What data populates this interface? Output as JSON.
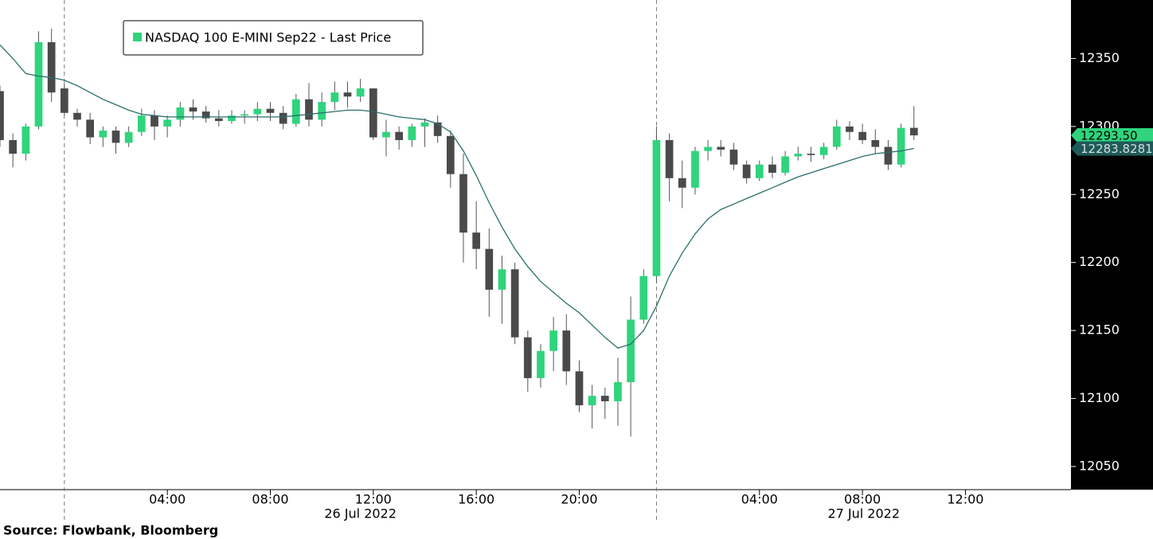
{
  "chart_data": {
    "type": "candlestick",
    "name": "NASDAQ 100 E-MINI Sep22 - Last Price",
    "up_color": "#2fd47c",
    "down_color": "#4a4a4a",
    "x": [
      -2.5,
      -2,
      -1.5,
      -1,
      -0.5,
      0,
      0.5,
      1,
      1.5,
      2,
      2.5,
      3,
      3.5,
      4,
      4.5,
      5,
      5.5,
      6,
      6.5,
      7,
      7.5,
      8,
      8.5,
      9,
      9.5,
      10,
      10.5,
      11,
      11.5,
      12,
      12.5,
      13,
      13.5,
      14,
      14.5,
      15,
      15.5,
      16,
      16.5,
      17,
      17.5,
      18,
      18.5,
      19,
      19.5,
      20,
      20.5,
      21,
      21.5,
      22,
      22.5,
      23,
      23.5,
      24,
      24.5,
      25,
      25.5,
      26,
      26.5,
      27,
      27.5,
      28,
      28.5,
      29,
      29.5,
      30,
      30.5,
      31,
      31.5,
      32,
      32.5,
      33
    ],
    "open": [
      12326,
      12290,
      12280,
      12300,
      12362,
      12328,
      12310,
      12305,
      12292,
      12297,
      12288,
      12296,
      12308,
      12300,
      12305,
      12314,
      12311,
      12306,
      12304,
      12308,
      12309,
      12313,
      12310,
      12302,
      12320,
      12305,
      12318,
      12325,
      12322,
      12328,
      12292,
      12296,
      12290,
      12300,
      12303,
      12293,
      12265,
      12222,
      12210,
      12180,
      12195,
      12145,
      12115,
      12135,
      12150,
      12120,
      12095,
      12102,
      12098,
      12112,
      12158,
      12190,
      12290,
      12262,
      12255,
      12282,
      12285,
      12283,
      12272,
      12262,
      12272,
      12266,
      12278,
      12280,
      12279,
      12285,
      12300,
      12296,
      12290,
      12285,
      12272,
      12299
    ],
    "high": [
      12330,
      12295,
      12302,
      12370,
      12372,
      12332,
      12313,
      12310,
      12300,
      12300,
      12300,
      12313,
      12312,
      12308,
      12318,
      12320,
      12315,
      12312,
      12312,
      12312,
      12318,
      12318,
      12315,
      12324,
      12332,
      12325,
      12333,
      12333,
      12335,
      12328,
      12305,
      12300,
      12302,
      12306,
      12308,
      12297,
      12280,
      12245,
      12225,
      12205,
      12200,
      12150,
      12140,
      12160,
      12162,
      12128,
      12110,
      12108,
      12130,
      12175,
      12195,
      12300,
      12295,
      12275,
      12285,
      12290,
      12290,
      12288,
      12275,
      12275,
      12278,
      12282,
      12285,
      12285,
      12288,
      12305,
      12304,
      12302,
      12298,
      12290,
      12302,
      12315
    ],
    "low": [
      12285,
      12270,
      12275,
      12298,
      12318,
      12308,
      12300,
      12287,
      12285,
      12280,
      12285,
      12293,
      12290,
      12292,
      12300,
      12305,
      12303,
      12300,
      12302,
      12302,
      12304,
      12304,
      12298,
      12300,
      12300,
      12300,
      12312,
      12314,
      12318,
      12290,
      12278,
      12283,
      12285,
      12285,
      12288,
      12255,
      12200,
      12195,
      12160,
      12155,
      12140,
      12105,
      12108,
      12120,
      12110,
      12090,
      12078,
      12085,
      12080,
      12072,
      12155,
      12185,
      12245,
      12240,
      12250,
      12275,
      12278,
      12268,
      12258,
      12260,
      12262,
      12264,
      12275,
      12274,
      12276,
      12283,
      12290,
      12287,
      12280,
      12268,
      12270,
      12290
    ],
    "close": [
      12290,
      12280,
      12300,
      12362,
      12325,
      12310,
      12305,
      12292,
      12297,
      12288,
      12296,
      12308,
      12300,
      12305,
      12314,
      12311,
      12306,
      12304,
      12308,
      12309,
      12313,
      12310,
      12302,
      12320,
      12305,
      12318,
      12325,
      12322,
      12328,
      12292,
      12296,
      12290,
      12300,
      12303,
      12293,
      12265,
      12222,
      12210,
      12180,
      12195,
      12145,
      12115,
      12135,
      12150,
      12120,
      12095,
      12102,
      12098,
      12112,
      12158,
      12190,
      12290,
      12262,
      12255,
      12282,
      12285,
      12283,
      12272,
      12262,
      12272,
      12266,
      12278,
      12280,
      12279,
      12285,
      12300,
      12296,
      12290,
      12285,
      12272,
      12299,
      12293.5
    ],
    "moving_average": {
      "color": "#2a6f6b",
      "values": [
        12360,
        12350,
        12339,
        12337,
        12336,
        12334,
        12330,
        12325,
        12320,
        12316,
        12312,
        12309,
        12308,
        12307,
        12307,
        12307,
        12307,
        12307,
        12307,
        12307,
        12307,
        12307,
        12307,
        12308,
        12309,
        12310,
        12311,
        12312,
        12312,
        12311,
        12309,
        12307,
        12306,
        12305,
        12302,
        12296,
        12282,
        12264,
        12244,
        12226,
        12210,
        12197,
        12186,
        12178,
        12170,
        12163,
        12154,
        12145,
        12137,
        12140,
        12150,
        12168,
        12190,
        12207,
        12221,
        12232,
        12239,
        12243,
        12247,
        12251,
        12255,
        12259,
        12263,
        12266,
        12269,
        12272,
        12275,
        12278,
        12280,
        12281,
        12282,
        12283.8281
      ]
    },
    "last_labels": [
      {
        "value": 12293.5,
        "label": "12293.50",
        "color": "#2fd47c",
        "text_color": "#000000"
      },
      {
        "value": 12283.8281,
        "label": "12283.8281",
        "color": "#1e5a5a",
        "text_color": "#dddddd"
      }
    ],
    "xlim": [
      -2.5,
      39.1
    ],
    "ylim": [
      12033,
      12393
    ],
    "yticks": [
      12050,
      12100,
      12150,
      12200,
      12250,
      12300,
      12350
    ],
    "xticks": [
      {
        "value": 4,
        "label": "04:00"
      },
      {
        "value": 8,
        "label": "08:00"
      },
      {
        "value": 12,
        "label": "12:00"
      },
      {
        "value": 16,
        "label": "16:00"
      },
      {
        "value": 20,
        "label": "20:00"
      },
      {
        "value": 27,
        "label": "04:00"
      },
      {
        "value": 31,
        "label": "08:00"
      },
      {
        "value": 35,
        "label": "12:00"
      }
    ],
    "date_ticks": [
      {
        "value": 0,
        "label": "26 Jul 2022"
      },
      {
        "value": 23,
        "label": "27 Jul 2022"
      }
    ]
  },
  "source": "Source: Flowbank, Bloomberg"
}
